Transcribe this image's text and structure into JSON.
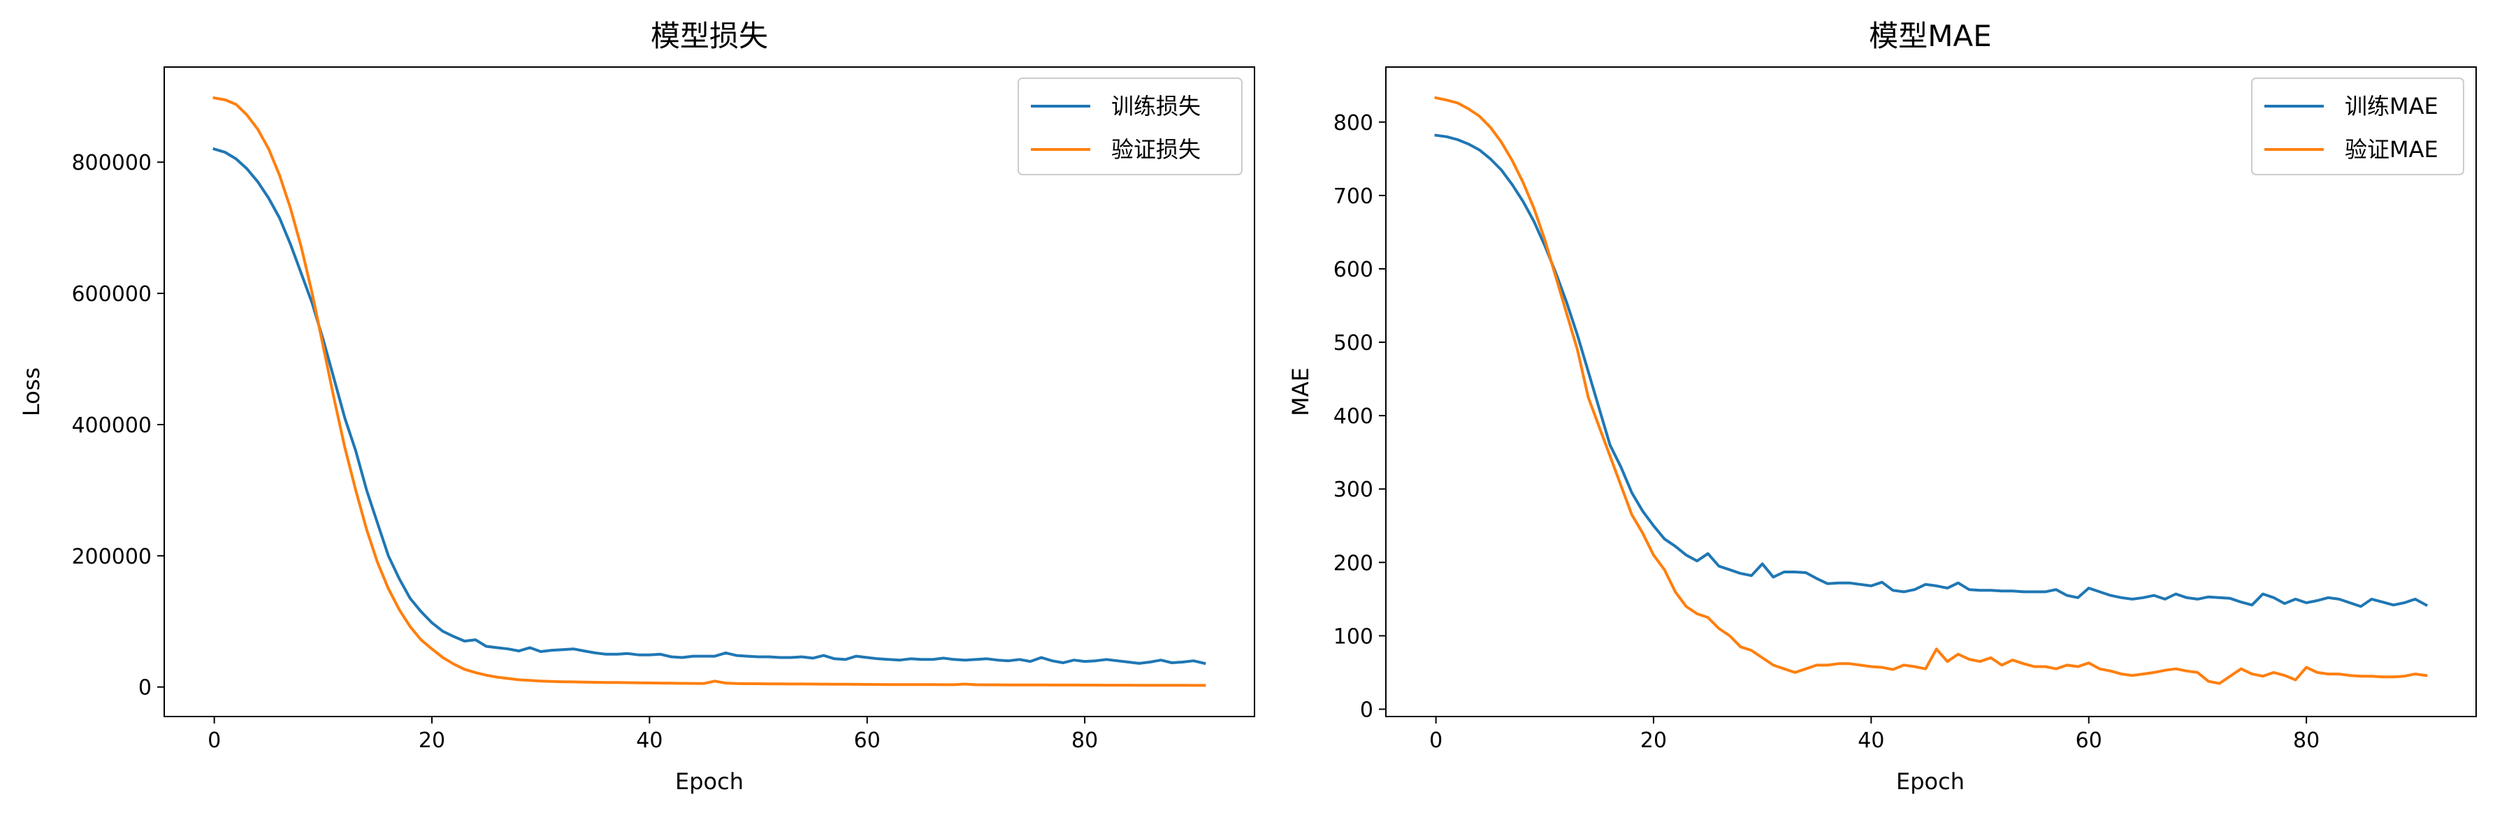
{
  "chart_data": [
    {
      "type": "line",
      "title": "模型损失",
      "xlabel": "Epoch",
      "ylabel": "Loss",
      "xlim": [
        -4.6,
        95.6
      ],
      "ylim": [
        -45000,
        945000
      ],
      "xticks": [
        0,
        20,
        40,
        60,
        80
      ],
      "yticks": [
        0,
        200000,
        400000,
        600000,
        800000
      ],
      "xtick_labels": [
        "0",
        "20",
        "40",
        "60",
        "80"
      ],
      "ytick_labels": [
        "0",
        "200000",
        "400000",
        "600000",
        "800000"
      ],
      "grid": false,
      "legend": "top-right",
      "series": [
        {
          "name": "训练损失",
          "color": "#1f77b4",
          "x": [
            0,
            1,
            2,
            3,
            4,
            5,
            6,
            7,
            8,
            9,
            10,
            11,
            12,
            13,
            14,
            15,
            16,
            17,
            18,
            19,
            20,
            21,
            22,
            23,
            24,
            25,
            26,
            27,
            28,
            29,
            30,
            31,
            32,
            33,
            34,
            35,
            36,
            37,
            38,
            39,
            40,
            41,
            42,
            43,
            44,
            45,
            46,
            47,
            48,
            49,
            50,
            51,
            52,
            53,
            54,
            55,
            56,
            57,
            58,
            59,
            60,
            61,
            62,
            63,
            64,
            65,
            66,
            67,
            68,
            69,
            70,
            71,
            72,
            73,
            74,
            75,
            76,
            77,
            78,
            79,
            80,
            81,
            82,
            83,
            84,
            85,
            86,
            87,
            88,
            89,
            90,
            91
          ],
          "y": [
            820000,
            815000,
            805000,
            790000,
            770000,
            745000,
            715000,
            675000,
            630000,
            585000,
            530000,
            470000,
            410000,
            360000,
            300000,
            250000,
            200000,
            165000,
            135000,
            115000,
            98000,
            85000,
            77000,
            70000,
            72000,
            62000,
            60000,
            58000,
            55000,
            60000,
            54000,
            56000,
            57000,
            58000,
            55000,
            52000,
            50000,
            50000,
            51000,
            49000,
            49000,
            50000,
            46000,
            45000,
            47000,
            47000,
            47000,
            52000,
            48000,
            47000,
            46000,
            46000,
            45000,
            45000,
            46000,
            44000,
            48000,
            43000,
            42000,
            47000,
            45000,
            43000,
            42000,
            41000,
            43000,
            42000,
            42000,
            44000,
            42000,
            41000,
            42000,
            43000,
            41000,
            40000,
            42000,
            39000,
            45000,
            40000,
            37000,
            41000,
            39000,
            40000,
            42000,
            40000,
            38000,
            36000,
            38000,
            41000,
            37000,
            38000,
            40000,
            36000
          ]
        },
        {
          "name": "验证损失",
          "color": "#ff7f0e",
          "x": [
            0,
            1,
            2,
            3,
            4,
            5,
            6,
            7,
            8,
            9,
            10,
            11,
            12,
            13,
            14,
            15,
            16,
            17,
            18,
            19,
            20,
            21,
            22,
            23,
            24,
            25,
            26,
            27,
            28,
            29,
            30,
            31,
            32,
            33,
            34,
            35,
            36,
            37,
            38,
            39,
            40,
            41,
            42,
            43,
            44,
            45,
            46,
            47,
            48,
            49,
            50,
            51,
            52,
            53,
            54,
            55,
            56,
            57,
            58,
            59,
            60,
            61,
            62,
            63,
            64,
            65,
            66,
            67,
            68,
            69,
            70,
            71,
            72,
            73,
            74,
            75,
            76,
            77,
            78,
            79,
            80,
            81,
            82,
            83,
            84,
            85,
            86,
            87,
            88,
            89,
            90,
            91
          ],
          "y": [
            898000,
            895000,
            888000,
            872000,
            850000,
            820000,
            780000,
            730000,
            670000,
            600000,
            520000,
            440000,
            365000,
            300000,
            240000,
            190000,
            150000,
            118000,
            92000,
            72000,
            58000,
            45000,
            35000,
            27000,
            22000,
            18000,
            15000,
            13000,
            11000,
            10000,
            9000,
            8500,
            8000,
            7800,
            7500,
            7200,
            7000,
            6800,
            6600,
            6400,
            6200,
            6000,
            5800,
            5600,
            5500,
            5400,
            9000,
            6000,
            5200,
            5000,
            5000,
            4800,
            4800,
            4600,
            4600,
            4500,
            4400,
            4300,
            4200,
            4100,
            4000,
            3900,
            3800,
            3800,
            3700,
            3600,
            3600,
            3500,
            3500,
            4500,
            3400,
            3300,
            3300,
            3200,
            3200,
            3100,
            3100,
            3000,
            3000,
            3000,
            2900,
            2900,
            2800,
            2800,
            2800,
            2700,
            2700,
            2700,
            2600,
            2600,
            2500,
            2500
          ]
        }
      ]
    },
    {
      "type": "line",
      "title": "模型MAE",
      "xlabel": "Epoch",
      "ylabel": "MAE",
      "xlim": [
        -4.6,
        95.6
      ],
      "ylim": [
        -10,
        875
      ],
      "xticks": [
        0,
        20,
        40,
        60,
        80
      ],
      "yticks": [
        0,
        100,
        200,
        300,
        400,
        500,
        600,
        700,
        800
      ],
      "xtick_labels": [
        "0",
        "20",
        "40",
        "60",
        "80"
      ],
      "ytick_labels": [
        "0",
        "100",
        "200",
        "300",
        "400",
        "500",
        "600",
        "700",
        "800"
      ],
      "grid": false,
      "legend": "top-right",
      "series": [
        {
          "name": "训练MAE",
          "color": "#1f77b4",
          "x": [
            0,
            1,
            2,
            3,
            4,
            5,
            6,
            7,
            8,
            9,
            10,
            11,
            12,
            13,
            14,
            15,
            16,
            17,
            18,
            19,
            20,
            21,
            22,
            23,
            24,
            25,
            26,
            27,
            28,
            29,
            30,
            31,
            32,
            33,
            34,
            35,
            36,
            37,
            38,
            39,
            40,
            41,
            42,
            43,
            44,
            45,
            46,
            47,
            48,
            49,
            50,
            51,
            52,
            53,
            54,
            55,
            56,
            57,
            58,
            59,
            60,
            61,
            62,
            63,
            64,
            65,
            66,
            67,
            68,
            69,
            70,
            71,
            72,
            73,
            74,
            75,
            76,
            77,
            78,
            79,
            80,
            81,
            82,
            83,
            84,
            85,
            86,
            87,
            88,
            89,
            90,
            91
          ],
          "y": [
            782,
            780,
            776,
            770,
            762,
            750,
            735,
            715,
            692,
            665,
            632,
            595,
            555,
            510,
            460,
            410,
            360,
            330,
            295,
            270,
            250,
            232,
            222,
            210,
            202,
            212,
            195,
            190,
            185,
            182,
            198,
            180,
            187,
            187,
            186,
            178,
            171,
            172,
            172,
            170,
            168,
            173,
            162,
            160,
            163,
            170,
            168,
            165,
            172,
            163,
            162,
            162,
            161,
            161,
            160,
            160,
            160,
            163,
            155,
            152,
            165,
            160,
            155,
            152,
            150,
            152,
            155,
            150,
            157,
            152,
            150,
            153,
            152,
            151,
            146,
            142,
            157,
            152,
            144,
            150,
            145,
            148,
            152,
            150,
            145,
            140,
            150,
            146,
            142,
            145,
            150,
            142
          ]
        },
        {
          "name": "验证MAE",
          "color": "#ff7f0e",
          "x": [
            0,
            1,
            2,
            3,
            4,
            5,
            6,
            7,
            8,
            9,
            10,
            11,
            12,
            13,
            14,
            15,
            16,
            17,
            18,
            19,
            20,
            21,
            22,
            23,
            24,
            25,
            26,
            27,
            28,
            29,
            30,
            31,
            32,
            33,
            34,
            35,
            36,
            37,
            38,
            39,
            40,
            41,
            42,
            43,
            44,
            45,
            46,
            47,
            48,
            49,
            50,
            51,
            52,
            53,
            54,
            55,
            56,
            57,
            58,
            59,
            60,
            61,
            62,
            63,
            64,
            65,
            66,
            67,
            68,
            69,
            70,
            71,
            72,
            73,
            74,
            75,
            76,
            77,
            78,
            79,
            80,
            81,
            82,
            83,
            84,
            85,
            86,
            87,
            88,
            89,
            90,
            91
          ],
          "y": [
            833,
            830,
            826,
            818,
            808,
            793,
            773,
            748,
            718,
            683,
            640,
            590,
            540,
            490,
            425,
            385,
            345,
            305,
            265,
            240,
            210,
            190,
            160,
            140,
            130,
            125,
            110,
            100,
            85,
            80,
            70,
            60,
            55,
            50,
            55,
            60,
            60,
            62,
            62,
            60,
            58,
            57,
            54,
            60,
            58,
            55,
            82,
            65,
            75,
            68,
            65,
            70,
            60,
            67,
            62,
            58,
            58,
            55,
            60,
            58,
            63,
            55,
            52,
            48,
            46,
            48,
            50,
            53,
            55,
            52,
            50,
            38,
            35,
            45,
            55,
            48,
            45,
            50,
            46,
            40,
            57,
            50,
            48,
            48,
            46,
            45,
            45,
            44,
            44,
            45,
            48,
            46
          ]
        }
      ]
    }
  ]
}
